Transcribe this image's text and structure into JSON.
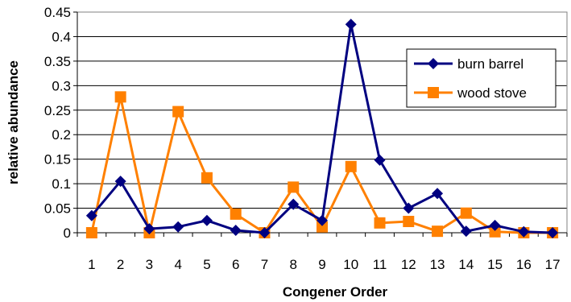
{
  "chart_data": {
    "type": "line",
    "xlabel": "Congener Order",
    "ylabel": "relative abundance",
    "x": [
      1,
      2,
      3,
      4,
      5,
      6,
      7,
      8,
      9,
      10,
      11,
      12,
      13,
      14,
      15,
      16,
      17
    ],
    "ylim": [
      0,
      0.45
    ],
    "yticks": [
      "0",
      "0.05",
      "0.1",
      "0.15",
      "0.2",
      "0.25",
      "0.3",
      "0.35",
      "0.4",
      "0.45"
    ],
    "ytick_values": [
      0,
      0.05,
      0.1,
      0.15,
      0.2,
      0.25,
      0.3,
      0.35,
      0.4,
      0.45
    ],
    "grid": "horizontal",
    "legend_position": "right",
    "series": [
      {
        "name": "burn barrel",
        "marker": "diamond",
        "color": "#000080",
        "values": [
          0.035,
          0.105,
          0.008,
          0.012,
          0.025,
          0.005,
          0.0,
          0.058,
          0.025,
          0.425,
          0.148,
          0.05,
          0.08,
          0.003,
          0.015,
          0.002,
          0.0
        ]
      },
      {
        "name": "wood stove",
        "marker": "square",
        "color": "#ff8000",
        "values": [
          0.0,
          0.277,
          0.0,
          0.247,
          0.112,
          0.038,
          0.0,
          0.093,
          0.012,
          0.135,
          0.02,
          0.023,
          0.003,
          0.04,
          0.002,
          0.0,
          0.0
        ]
      }
    ]
  }
}
